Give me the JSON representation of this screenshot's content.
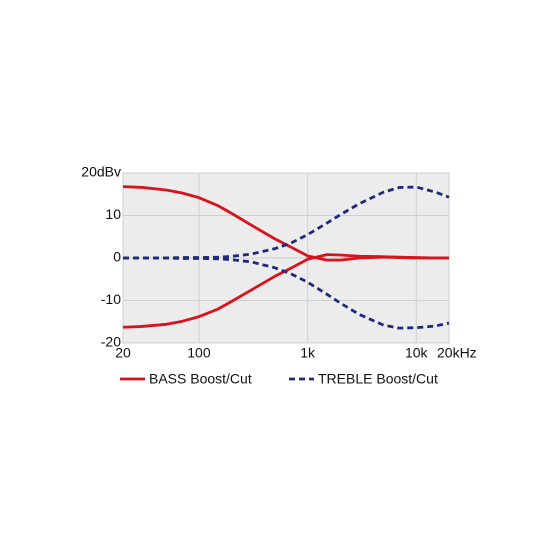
{
  "chart_data": {
    "type": "line",
    "x_scale": "log",
    "x": [
      20,
      30,
      50,
      70,
      100,
      150,
      200,
      300,
      500,
      700,
      1000,
      1500,
      2000,
      3000,
      5000,
      7000,
      10000,
      15000,
      20000
    ],
    "series": [
      {
        "name": "BASS Boost/Cut",
        "color": "#d7141e",
        "dash": false,
        "values": [
          [
            16.8,
            16.6,
            16.0,
            15.3,
            14.2,
            12.3,
            10.5,
            7.8,
            4.5,
            2.6,
            0.5,
            -0.5,
            -0.5,
            0,
            0.2,
            0.1,
            0,
            0,
            0
          ],
          [
            -16.3,
            -16.1,
            -15.6,
            -14.9,
            -13.8,
            -12.0,
            -10.2,
            -7.6,
            -4.3,
            -2.4,
            -0.3,
            0.8,
            0.7,
            0.4,
            0.3,
            0.2,
            0.1,
            0,
            0
          ]
        ]
      },
      {
        "name": "TREBLE Boost/Cut",
        "color": "#1f2a7a",
        "dash": true,
        "values": [
          [
            0,
            0,
            0,
            0.1,
            0.1,
            0.2,
            0.4,
            0.9,
            2.2,
            3.5,
            5.5,
            8.2,
            10.2,
            12.8,
            15.5,
            16.6,
            16.7,
            15.5,
            14.3
          ],
          [
            0,
            0,
            0,
            -0.1,
            -0.1,
            -0.2,
            -0.4,
            -0.9,
            -2.3,
            -3.7,
            -5.7,
            -8.5,
            -10.6,
            -13.3,
            -15.8,
            -16.5,
            -16.4,
            -16.0,
            -15.3
          ]
        ]
      }
    ],
    "xlim": [
      20,
      20000
    ],
    "ylim": [
      -20,
      20
    ],
    "xticks": [
      20,
      100,
      {
        "value": 1000,
        "label": "1k"
      },
      {
        "value": 10000,
        "label": "10k"
      },
      {
        "value": 20000,
        "label": "20kHz"
      }
    ],
    "yticks": [
      -20,
      -10,
      0,
      10,
      {
        "value": 20,
        "label": "20dBv"
      }
    ],
    "grid": true
  }
}
